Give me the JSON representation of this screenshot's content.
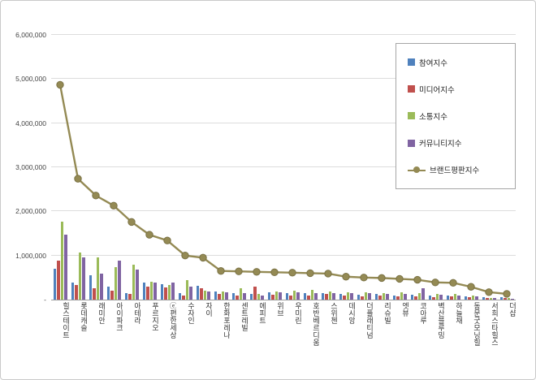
{
  "chart_data": {
    "type": "bar",
    "note": "grouped bars with overlaid line series (Excel-style combo chart)",
    "categories": [
      "힐스테이트",
      "롯데캐슬",
      "래미안",
      "아이파크",
      "아테라",
      "푸르지오",
      "ⓔ편한세상",
      "수자인",
      "자이",
      "한화포레나",
      "센트레빌",
      "에피트",
      "위브",
      "우미린",
      "호반베르디움",
      "스위첸",
      "데시앙",
      "더플래티넘",
      "리슈빌",
      "엣뷰",
      "코아루",
      "벽산블루밍",
      "하늘채",
      "동문굿모닝힐",
      "서희스타힐스",
      "더샵"
    ],
    "series": [
      {
        "id": "participation-index",
        "name": "참여지수",
        "color": "#4F81BD",
        "values": [
          700000,
          390000,
          560000,
          300000,
          150000,
          380000,
          350000,
          150000,
          310000,
          180000,
          150000,
          120000,
          170000,
          150000,
          140000,
          150000,
          130000,
          110000,
          120000,
          100000,
          110000,
          90000,
          100000,
          80000,
          60000,
          50000
        ]
      },
      {
        "id": "media-index",
        "name": "미디어지수",
        "color": "#C0504D",
        "values": [
          880000,
          330000,
          260000,
          210000,
          130000,
          300000,
          280000,
          100000,
          250000,
          120000,
          100000,
          290000,
          110000,
          100000,
          90000,
          120000,
          90000,
          80000,
          90000,
          80000,
          70000,
          60000,
          70000,
          50000,
          40000,
          30000
        ]
      },
      {
        "id": "communication-index",
        "name": "소통지수",
        "color": "#9BBB59",
        "values": [
          1760000,
          1070000,
          950000,
          730000,
          790000,
          410000,
          330000,
          450000,
          200000,
          190000,
          250000,
          130000,
          180000,
          200000,
          220000,
          180000,
          160000,
          170000,
          150000,
          160000,
          150000,
          130000,
          120000,
          90000,
          40000,
          30000
        ]
      },
      {
        "id": "community-index",
        "name": "커뮤니티지수",
        "color": "#8064A2",
        "values": [
          1480000,
          950000,
          590000,
          890000,
          690000,
          380000,
          380000,
          300000,
          190000,
          160000,
          140000,
          90000,
          160000,
          160000,
          150000,
          140000,
          140000,
          140000,
          130000,
          130000,
          250000,
          110000,
          90000,
          70000,
          30000,
          20000
        ]
      }
    ],
    "line_series": {
      "id": "brand-reputation-index",
      "name": "브랜드평판지수",
      "color": "#948A54",
      "values": [
        4870000,
        2740000,
        2360000,
        2130000,
        1760000,
        1470000,
        1340000,
        1000000,
        950000,
        650000,
        640000,
        630000,
        620000,
        610000,
        600000,
        590000,
        520000,
        500000,
        490000,
        470000,
        450000,
        390000,
        380000,
        290000,
        170000,
        130000
      ]
    },
    "title": "",
    "xlabel": "",
    "ylabel": "",
    "ylim": [
      0,
      6000000
    ],
    "ytick_step": 1000000,
    "ytick_labels": [
      "-",
      "1,000,000",
      "2,000,000",
      "3,000,000",
      "4,000,000",
      "5,000,000",
      "6,000,000"
    ],
    "grid": true,
    "legend_position": "top-right"
  },
  "legend": {
    "items": [
      {
        "id": "participation-index",
        "label": "참여지수",
        "type": "square",
        "color": "#4F81BD"
      },
      {
        "id": "media-index",
        "label": "미디어지수",
        "type": "square",
        "color": "#C0504D"
      },
      {
        "id": "communication-index",
        "label": "소통지수",
        "type": "square",
        "color": "#9BBB59"
      },
      {
        "id": "community-index",
        "label": "커뮤니티지수",
        "type": "square",
        "color": "#8064A2"
      },
      {
        "id": "brand-reputation-index",
        "label": "브랜드평판지수",
        "type": "line-marker",
        "color": "#948A54"
      }
    ]
  },
  "colors": {
    "gridline": "#dcdcdc",
    "axis": "#9e9e9e",
    "background": "#ffffff",
    "frame_border": "#c9c9c9"
  }
}
